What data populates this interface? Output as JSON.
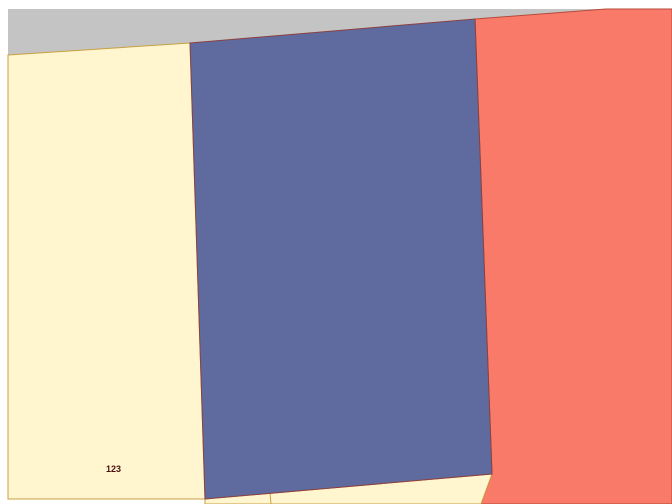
{
  "map": {
    "background_color": "#ffffff",
    "street_color": "#c4c4c4",
    "parcels": [
      {
        "name": "parcel-residential-left",
        "fill": "#fff5cf",
        "stroke": "#c8a040"
      },
      {
        "name": "parcel-residential-bottom",
        "fill": "#fff5cf",
        "stroke": "#c8a040"
      },
      {
        "name": "parcel-institutional",
        "fill": "#5f6b9e",
        "stroke": "#8a4040"
      },
      {
        "name": "parcel-commercial",
        "fill": "#f97a68",
        "stroke": "#b84a3a"
      }
    ],
    "labels": [
      {
        "text": "123",
        "color": "#4a1010"
      }
    ]
  }
}
